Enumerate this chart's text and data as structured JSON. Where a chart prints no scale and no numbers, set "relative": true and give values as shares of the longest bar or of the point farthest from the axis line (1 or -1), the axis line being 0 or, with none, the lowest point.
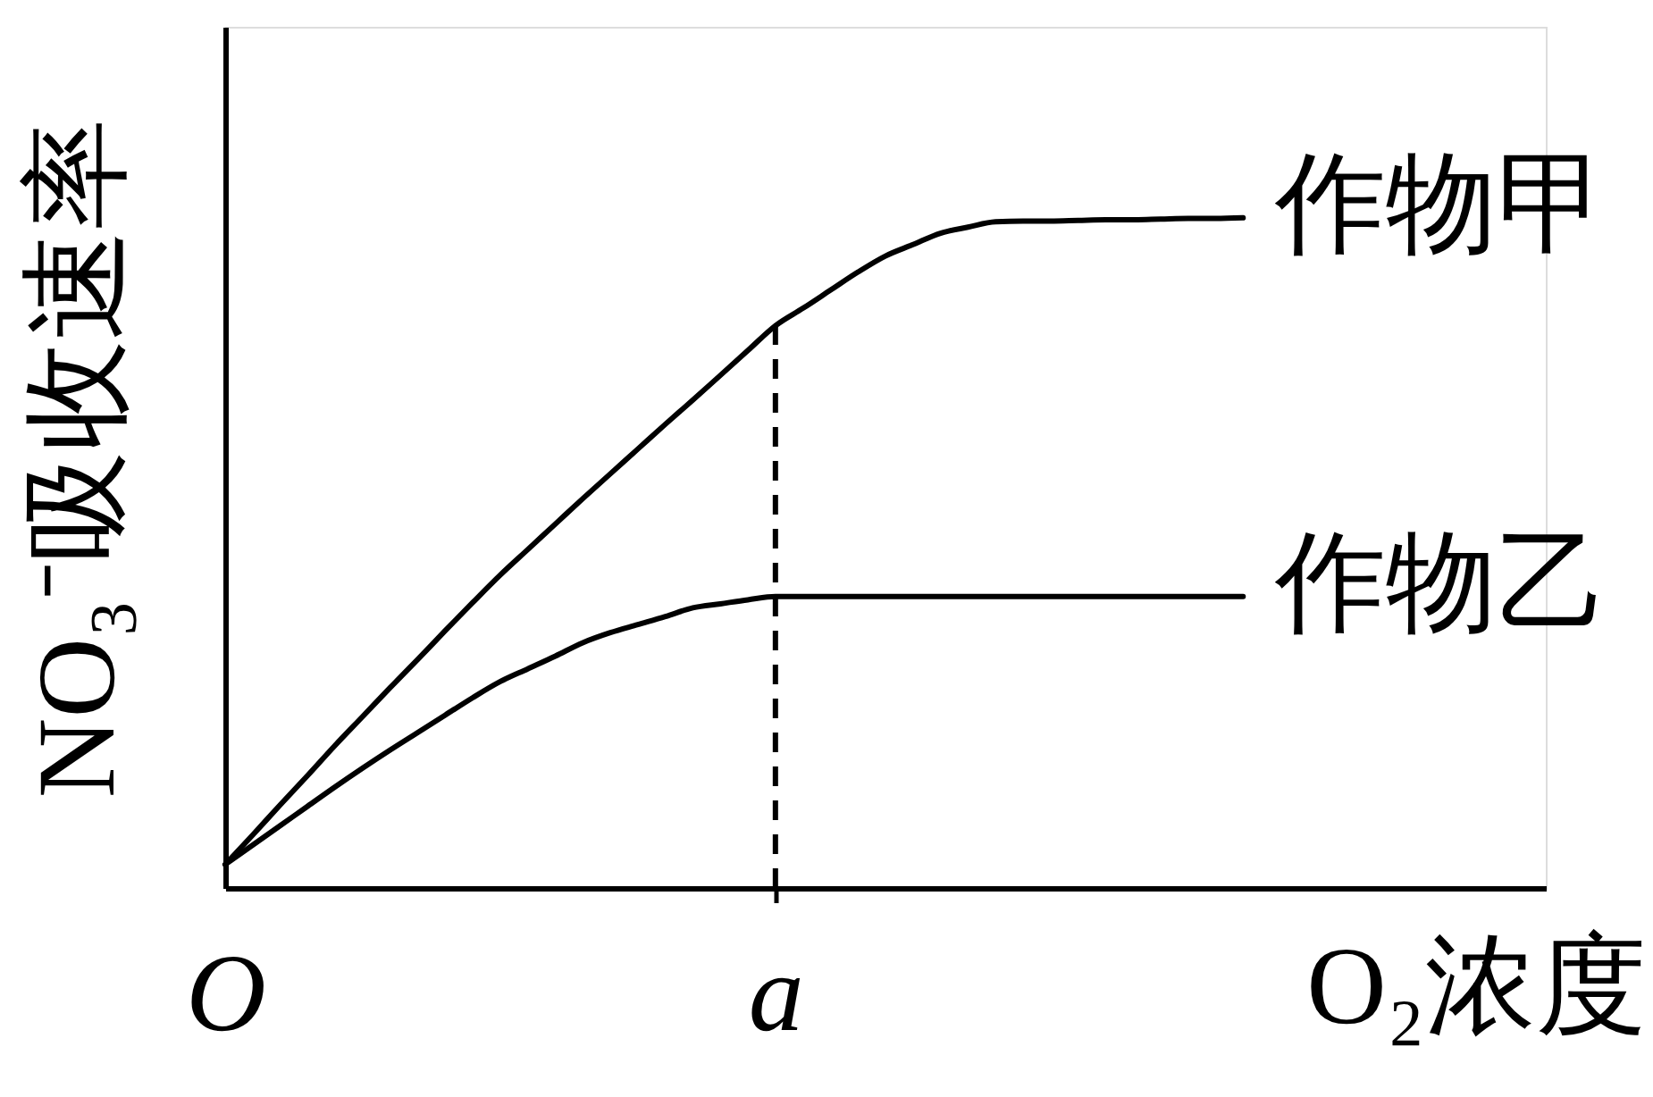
{
  "chart_data": {
    "type": "line",
    "xlabel": "O₂浓度",
    "ylabel": "NO₃⁻吸收速率",
    "categories": [
      "O",
      null,
      null,
      null,
      null,
      null,
      null,
      null,
      null,
      null,
      null,
      null,
      null,
      null,
      null,
      null,
      null,
      null,
      null,
      null,
      "a",
      null,
      null,
      null,
      null,
      null,
      null,
      null,
      null,
      null,
      null,
      null,
      null,
      null,
      null,
      null,
      null,
      null,
      null,
      null,
      null,
      null,
      null,
      null,
      null,
      null,
      null,
      null,
      null
    ],
    "series": [
      {
        "name": "作物甲",
        "color": "#000000",
        "values": [
          0.035,
          0.079,
          0.124,
          0.168,
          0.213,
          0.256,
          0.299,
          0.341,
          0.384,
          0.426,
          0.467,
          0.505,
          0.543,
          0.581,
          0.618,
          0.655,
          0.692,
          0.728,
          0.765,
          0.802,
          0.839,
          0.865,
          0.892,
          0.919,
          0.943,
          0.96,
          0.977,
          0.986,
          0.994,
          0.995,
          0.995,
          0.996,
          0.997,
          0.997,
          0.998,
          0.999,
          0.999,
          1.0,
          null,
          null,
          null,
          null,
          null,
          null,
          null,
          null,
          null,
          null,
          null
        ]
      },
      {
        "name": "作物乙",
        "color": "#000000",
        "values": [
          0.035,
          0.064,
          0.093,
          0.122,
          0.151,
          0.179,
          0.206,
          0.232,
          0.258,
          0.284,
          0.308,
          0.327,
          0.346,
          0.366,
          0.381,
          0.393,
          0.405,
          0.418,
          0.424,
          0.43,
          0.435,
          0.435,
          0.435,
          0.435,
          0.435,
          0.435,
          0.435,
          0.435,
          0.435,
          0.435,
          0.435,
          0.435,
          0.435,
          0.435,
          0.435,
          0.435,
          0.435,
          0.435,
          null,
          null,
          null,
          null,
          null,
          null,
          null,
          null,
          null,
          null,
          null
        ]
      }
    ],
    "relative": true,
    "ref_lines": [
      {
        "axis": "x",
        "value": "a",
        "line_style": "dashed",
        "color": "#000000"
      }
    ],
    "tick_labels": "x",
    "grid": false,
    "legend": false,
    "marker": "none",
    "line_style": "solid"
  }
}
